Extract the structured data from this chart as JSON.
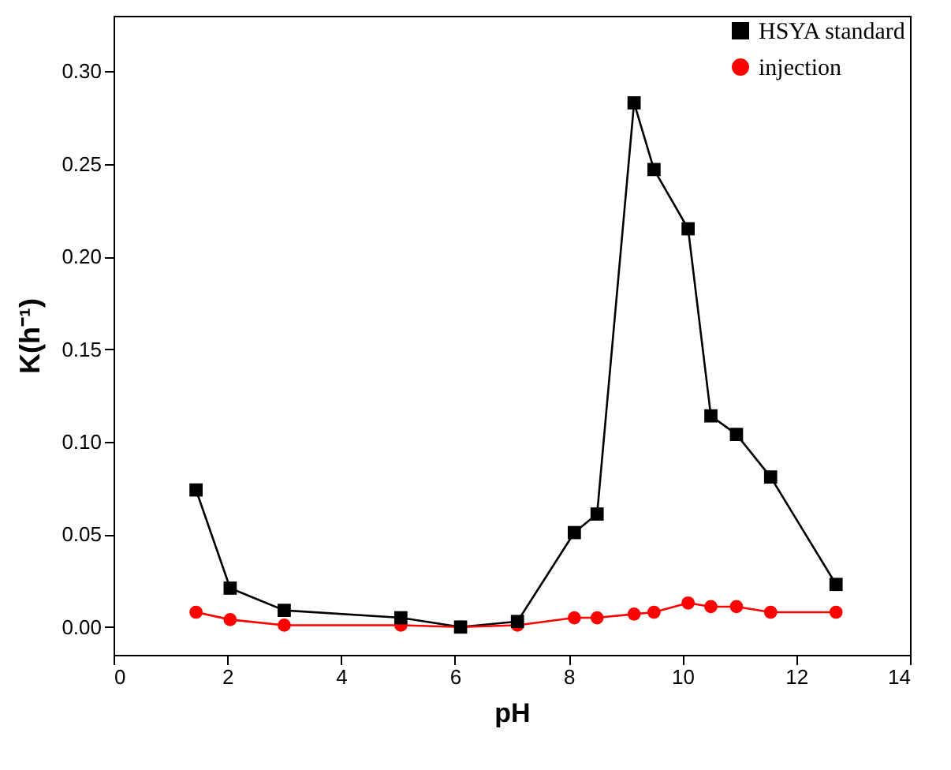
{
  "chart_data": {
    "type": "line",
    "xlabel": "pH",
    "ylabel": "K(h⁻¹)",
    "xlim": [
      0,
      14
    ],
    "xticks": [
      0,
      2,
      4,
      6,
      8,
      10,
      12,
      14
    ],
    "ylim": [
      -0.015,
      0.33
    ],
    "yticks": [
      {
        "value": 0,
        "label": "0.00"
      },
      {
        "value": 0.05,
        "label": "0.05"
      },
      {
        "value": 0.1,
        "label": "0.10"
      },
      {
        "value": 0.15,
        "label": "0.15"
      },
      {
        "value": 0.2,
        "label": "0.20"
      },
      {
        "value": 0.25,
        "label": "0.25"
      },
      {
        "value": 0.3,
        "label": "0.30"
      }
    ],
    "grid": false,
    "legend": "top right",
    "x": [
      1.45,
      2.05,
      3.0,
      5.05,
      6.1,
      7.1,
      8.1,
      8.5,
      9.15,
      9.5,
      10.1,
      10.5,
      10.95,
      11.55,
      12.7
    ],
    "series": [
      {
        "name": "HSYA standard",
        "color": "#000000",
        "marker": "square",
        "values": [
          0.074,
          0.021,
          0.009,
          0.005,
          0.0,
          0.003,
          0.051,
          0.061,
          0.283,
          0.247,
          0.215,
          0.114,
          0.104,
          0.081,
          0.023
        ]
      },
      {
        "name": "injection",
        "color": "#ff0000",
        "marker": "circle",
        "values": [
          0.008,
          0.004,
          0.001,
          0.001,
          0.0,
          0.001,
          0.005,
          0.005,
          0.007,
          0.008,
          0.013,
          0.011,
          0.011,
          0.008,
          0.008
        ]
      }
    ]
  }
}
